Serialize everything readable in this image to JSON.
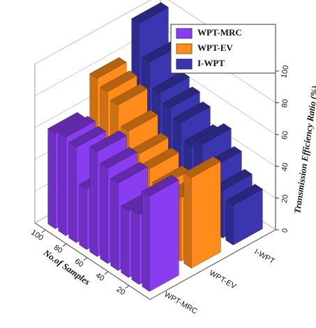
{
  "chart_data": {
    "type": "bar3d",
    "x_label": "No.of Samples",
    "y_label": "Transmission Efficiency Ratio (%)",
    "x": [
      10,
      20,
      30,
      40,
      50,
      60,
      70,
      80,
      90,
      100
    ],
    "xlim": [
      0,
      110
    ],
    "xticks": [
      20,
      40,
      60,
      80,
      100
    ],
    "ylim": [
      0,
      100
    ],
    "yticks": [
      0,
      20,
      40,
      60,
      80,
      100
    ],
    "legend": "upper right",
    "series": [
      {
        "name": "WPT-MRC",
        "color": "#8a3cf0",
        "values": [
          60,
          44,
          42,
          55,
          60,
          66,
          38,
          60,
          62,
          60
        ]
      },
      {
        "name": "WPT-EV",
        "color": "#ff8c1a",
        "values": [
          57,
          40,
          35,
          38,
          45,
          50,
          60,
          72,
          76,
          80
        ]
      },
      {
        "name": "I-WPT",
        "color": "#3a36b0",
        "values": [
          25,
          30,
          40,
          50,
          45,
          55,
          60,
          65,
          80,
          100
        ]
      }
    ]
  }
}
